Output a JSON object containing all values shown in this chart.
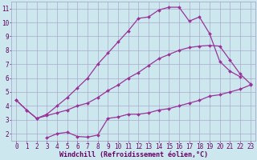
{
  "background_color": "#cce8ee",
  "grid_color": "#aaaacc",
  "line_color": "#993399",
  "marker": "D",
  "marker_size": 2.0,
  "line_width": 0.9,
  "xlabel": "Windchill (Refroidissement éolien,°C)",
  "xlabel_color": "#660066",
  "xlabel_fontsize": 6.0,
  "tick_color": "#660066",
  "tick_fontsize": 5.5,
  "xlim": [
    -0.5,
    23.5
  ],
  "ylim": [
    1.5,
    11.5
  ],
  "xticks": [
    0,
    1,
    2,
    3,
    4,
    5,
    6,
    7,
    8,
    9,
    10,
    11,
    12,
    13,
    14,
    15,
    16,
    17,
    18,
    19,
    20,
    21,
    22,
    23
  ],
  "yticks": [
    2,
    3,
    4,
    5,
    6,
    7,
    8,
    9,
    10,
    11
  ],
  "line1_x": [
    0,
    1,
    2,
    3,
    4,
    5,
    6,
    7,
    8,
    9,
    10,
    11,
    12,
    13,
    14,
    15,
    16,
    17,
    18,
    19,
    20,
    21,
    22,
    23
  ],
  "line1_y": [
    4.4,
    3.7,
    3.1,
    3.3,
    3.5,
    3.7,
    4.0,
    4.2,
    4.6,
    5.1,
    5.5,
    6.0,
    6.4,
    6.9,
    7.4,
    7.7,
    8.0,
    8.2,
    8.3,
    8.35,
    8.3,
    7.3,
    6.3,
    5.6
  ],
  "line2_x": [
    0,
    1,
    2,
    3,
    4,
    5,
    6,
    7,
    8,
    9,
    10,
    11,
    12,
    13,
    14,
    15,
    16,
    17,
    18,
    19,
    20,
    21,
    22
  ],
  "line2_y": [
    4.4,
    3.7,
    3.1,
    3.4,
    4.0,
    4.6,
    5.3,
    6.0,
    7.0,
    7.8,
    8.6,
    9.4,
    10.3,
    10.4,
    10.9,
    11.1,
    11.1,
    10.1,
    10.4,
    9.2,
    7.2,
    6.5,
    6.1
  ],
  "line3_x": [
    3,
    4,
    5,
    6,
    7,
    8,
    9,
    10,
    11,
    12,
    13,
    14,
    15,
    16,
    17,
    18,
    19,
    20,
    21,
    22,
    23
  ],
  "line3_y": [
    1.7,
    2.0,
    2.1,
    1.8,
    1.75,
    1.9,
    3.1,
    3.2,
    3.4,
    3.4,
    3.5,
    3.7,
    3.8,
    4.0,
    4.2,
    4.4,
    4.7,
    4.8,
    5.0,
    5.2,
    5.5
  ]
}
